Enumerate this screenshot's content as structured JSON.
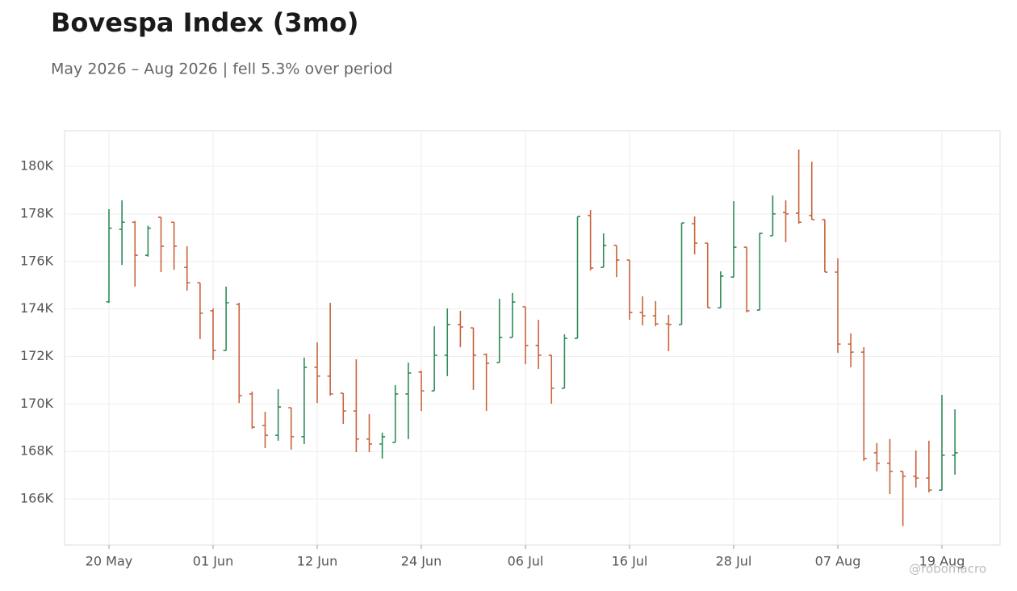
{
  "chart_data": {
    "type": "ohlc",
    "title": "Bovespa Index (3mo)",
    "subtitle": "May 2026 – Aug 2026 | fell 5.3% over period",
    "watermark": "@robomacro",
    "categories": [
      "20 May",
      null,
      null,
      null,
      null,
      null,
      null,
      null,
      "01 Jun",
      null,
      null,
      null,
      null,
      null,
      null,
      null,
      "12 Jun",
      null,
      null,
      null,
      null,
      null,
      null,
      null,
      "24 Jun",
      null,
      null,
      null,
      null,
      null,
      null,
      null,
      "06 Jul",
      null,
      null,
      null,
      null,
      null,
      null,
      null,
      "16 Jul",
      null,
      null,
      null,
      null,
      null,
      null,
      null,
      "28 Jul",
      null,
      null,
      null,
      null,
      null,
      null,
      null,
      "07 Aug",
      null,
      null,
      null,
      null,
      null,
      null,
      null,
      "19 Aug",
      null
    ],
    "open": [
      174300,
      177350,
      177650,
      176260,
      177860,
      177650,
      175750,
      175100,
      173920,
      172250,
      174190,
      170420,
      169090,
      168680,
      169840,
      168620,
      171540,
      171170,
      170450,
      169700,
      168520,
      168310,
      168380,
      170420,
      171340,
      170550,
      172050,
      173340,
      173200,
      172080,
      171740,
      172800,
      174090,
      172460,
      172050,
      170660,
      172760,
      177930,
      175750,
      176670,
      176060,
      173850,
      173710,
      173370,
      173340,
      177590,
      176770,
      174050,
      175340,
      176600,
      173950,
      177080,
      178060,
      178030,
      177930,
      177760,
      175550,
      172520,
      172180,
      167940,
      167500,
      167160,
      166950,
      166880,
      166370,
      167840
    ],
    "high": [
      178200,
      178570,
      177700,
      177500,
      177860,
      177650,
      176640,
      175100,
      174020,
      174940,
      174260,
      170520,
      169670,
      170620,
      169840,
      171950,
      172590,
      174260,
      170450,
      171880,
      169570,
      168790,
      170790,
      171740,
      171400,
      173270,
      174020,
      173920,
      173200,
      172120,
      174430,
      174670,
      174090,
      173540,
      172050,
      172930,
      177890,
      178170,
      177180,
      176670,
      176060,
      174530,
      174330,
      173750,
      177620,
      177890,
      176770,
      175580,
      178540,
      176600,
      177210,
      178780,
      178570,
      180710,
      180200,
      177760,
      176130,
      172970,
      172390,
      168350,
      168520,
      167160,
      168040,
      168450,
      170380,
      169770
    ],
    "low": [
      174250,
      175850,
      174940,
      176200,
      175550,
      175650,
      174770,
      172730,
      171850,
      172250,
      170040,
      168960,
      168140,
      168450,
      168070,
      168310,
      170040,
      170350,
      169160,
      167970,
      167970,
      167700,
      168380,
      168520,
      169700,
      170550,
      171170,
      172390,
      170590,
      169700,
      171740,
      172800,
      171670,
      171470,
      170010,
      170660,
      172760,
      175620,
      175750,
      175340,
      173540,
      173310,
      173270,
      172220,
      173340,
      176300,
      174050,
      174050,
      175340,
      173850,
      173950,
      177080,
      176810,
      177590,
      177760,
      175550,
      172150,
      171540,
      167600,
      167160,
      166200,
      164850,
      166480,
      166270,
      166370,
      167020
    ],
    "close": [
      177400,
      177650,
      176260,
      177400,
      176640,
      176640,
      175100,
      173820,
      172250,
      174260,
      170350,
      169020,
      168680,
      169870,
      168620,
      171540,
      171170,
      170420,
      169700,
      168520,
      168310,
      168620,
      170420,
      171300,
      170550,
      172050,
      173340,
      173240,
      172050,
      171710,
      172800,
      174290,
      172460,
      172050,
      170660,
      172760,
      177890,
      175720,
      176670,
      176060,
      173850,
      173710,
      173370,
      173340,
      177620,
      176770,
      174050,
      175380,
      176600,
      173920,
      177180,
      178000,
      178000,
      177650,
      177760,
      175550,
      172520,
      172180,
      167700,
      167500,
      167160,
      166950,
      166880,
      166370,
      167840,
      167940
    ],
    "up_color": "#2e8b57",
    "down_color": "#c8643c",
    "ylim": [
      164060,
      181500
    ],
    "yticks": [
      {
        "value": 166000,
        "label": "166K"
      },
      {
        "value": 168000,
        "label": "168K"
      },
      {
        "value": 170000,
        "label": "170K"
      },
      {
        "value": 172000,
        "label": "172K"
      },
      {
        "value": 174000,
        "label": "174K"
      },
      {
        "value": 176000,
        "label": "176K"
      },
      {
        "value": 178000,
        "label": "178K"
      },
      {
        "value": 180000,
        "label": "180K"
      }
    ],
    "grid": true
  }
}
